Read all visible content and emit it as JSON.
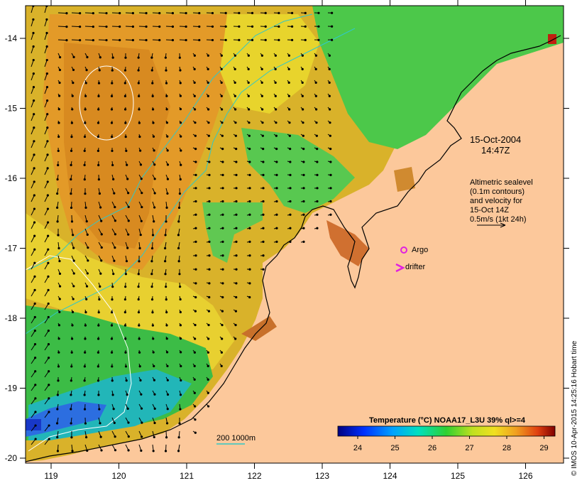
{
  "map": {
    "lon_ticks": [
      "119",
      "120",
      "121",
      "122",
      "123",
      "124",
      "125",
      "126"
    ],
    "lat_ticks": [
      "-14",
      "-15",
      "-16",
      "-17",
      "-18",
      "-19",
      "-20"
    ],
    "date_line1": "15-Oct-2004",
    "date_line2": "14:47Z",
    "altimetry_lines": [
      "Altimetric sealevel",
      "(0.1m contours)",
      "and velocity for",
      "15-Oct 14Z",
      "0.5m/s (1kt 24h)"
    ],
    "argo_label": "Argo",
    "drifter_label": "drifter",
    "depth_label": "200  1000m",
    "colorbar_title": "Temperature (°C) NOAA17_L3U 39% ql>=4",
    "colorbar_ticks": [
      "24",
      "25",
      "26",
      "27",
      "28",
      "29"
    ],
    "credit": "© IMOS 10-Apr-2015 14:25:16 Hobart time",
    "colors": {
      "land": "#fcc89b",
      "warm_orange": "#e59a1a",
      "yellow": "#f0d020",
      "green": "#3cc23c",
      "cyan": "#18b8d8",
      "blue": "#2050d0",
      "argo": "#e020e0",
      "drifter": "#e020e0",
      "bathy": "#30c8c8"
    }
  }
}
